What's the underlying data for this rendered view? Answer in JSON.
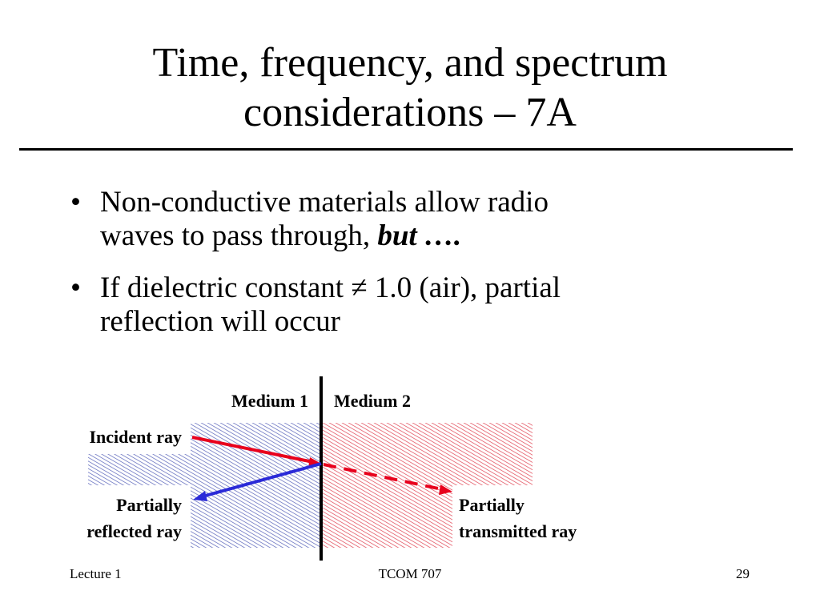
{
  "slide": {
    "title_line1": "Time, frequency, and spectrum",
    "title_line2": "considerations – 7A",
    "bullets": [
      {
        "marker": "•",
        "text_line1": "Non-conductive materials allow radio",
        "text_line2_prefix": "waves to pass through, ",
        "text_line2_emphasis": "but ….",
        "text_line2_suffix": ""
      },
      {
        "marker": "•",
        "text_line1": "If dielectric constant ≠ 1.0 (air), partial",
        "text_line2_prefix": "reflection will occur",
        "text_line2_emphasis": "",
        "text_line2_suffix": ""
      }
    ]
  },
  "diagram": {
    "medium1_label": "Medium 1",
    "medium2_label": "Medium 2",
    "incident_label": "Incident ray",
    "reflected_label_line1": "Partially",
    "reflected_label_line2": "reflected ray",
    "transmitted_label_line1": "Partially",
    "transmitted_label_line2": "transmitted ray",
    "colors": {
      "medium1_hatch": "#5560b8",
      "medium2_hatch": "#e04050",
      "incident_ray": "#e8001c",
      "reflected_ray": "#2a2ad8",
      "transmitted_ray": "#e8001c",
      "boundary": "#000000"
    }
  },
  "footer": {
    "left": "Lecture 1",
    "center": "TCOM 707",
    "right": "29"
  }
}
